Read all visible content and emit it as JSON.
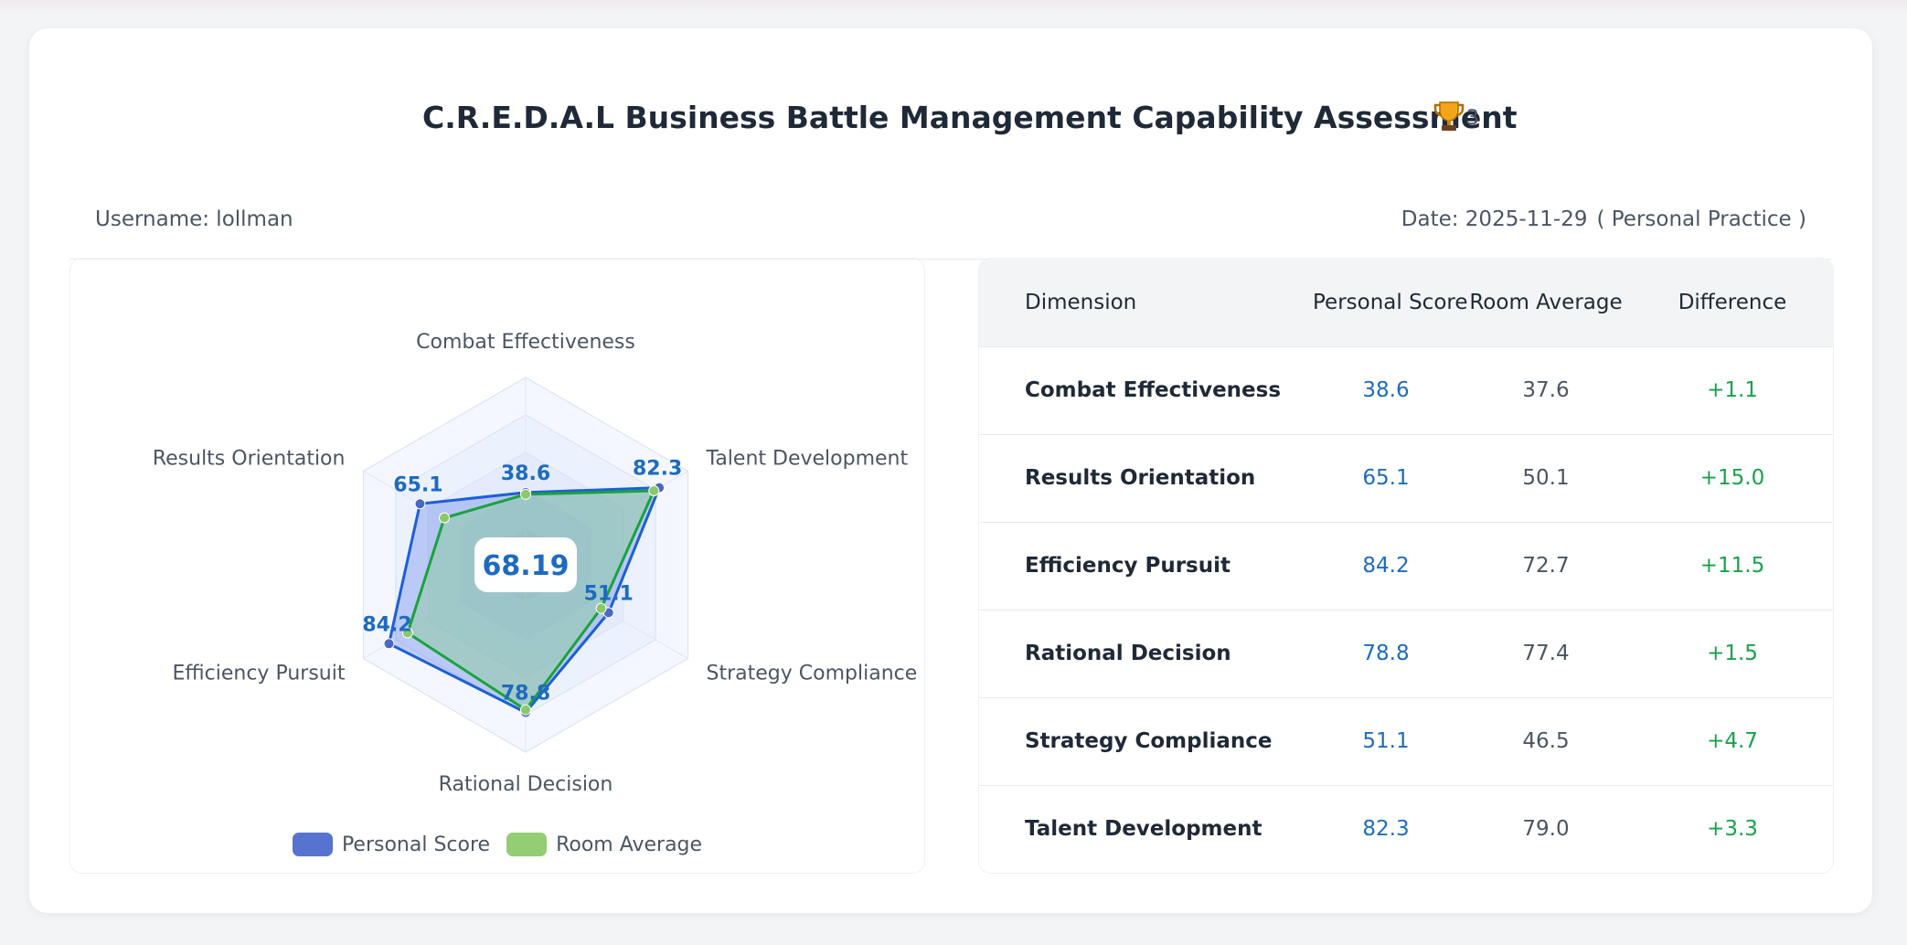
{
  "header": {
    "title": "C.R.E.D.A.L Business Battle Management Capability Assessment",
    "trophy_icon": "trophy-icon",
    "trophy_count": "3"
  },
  "info": {
    "username": "Username: lollman",
    "date": "Date: 2025-11-29",
    "mode": "( Personal Practice )"
  },
  "colors": {
    "personal": "#1d5fd6",
    "room": "#19a33c",
    "personal_text": "#1d6bbf",
    "diff_positive": "#16a34a"
  },
  "chart_data": {
    "type": "radar",
    "center_label": "68.19",
    "axes": [
      "Combat Effectiveness",
      "Talent Development",
      "Strategy Compliance",
      "Rational Decision",
      "Efficiency Pursuit",
      "Results Orientation"
    ],
    "range": [
      0,
      100
    ],
    "series": [
      {
        "name": "Personal Score",
        "values": [
          38.6,
          82.3,
          51.1,
          78.8,
          84.2,
          65.1
        ],
        "show_labels": true
      },
      {
        "name": "Room Average",
        "values": [
          37.6,
          79.0,
          46.5,
          77.4,
          72.7,
          50.1
        ],
        "show_labels": false
      }
    ],
    "value_labels": [
      "38.6",
      "82.3",
      "51.1",
      "78.8",
      "84.2",
      "65.1"
    ],
    "legend": [
      "Personal Score",
      "Room Average"
    ],
    "legend_position": "bottom"
  },
  "table": {
    "headers": [
      "Dimension",
      "Personal Score",
      "Room Average",
      "Difference"
    ],
    "rows": [
      [
        "Combat Effectiveness",
        "38.6",
        "37.6",
        "+1.1"
      ],
      [
        "Results Orientation",
        "65.1",
        "50.1",
        "+15.0"
      ],
      [
        "Efficiency Pursuit",
        "84.2",
        "72.7",
        "+11.5"
      ],
      [
        "Rational Decision",
        "78.8",
        "77.4",
        "+1.5"
      ],
      [
        "Strategy Compliance",
        "51.1",
        "46.5",
        "+4.7"
      ],
      [
        "Talent Development",
        "82.3",
        "79.0",
        "+3.3"
      ]
    ]
  }
}
